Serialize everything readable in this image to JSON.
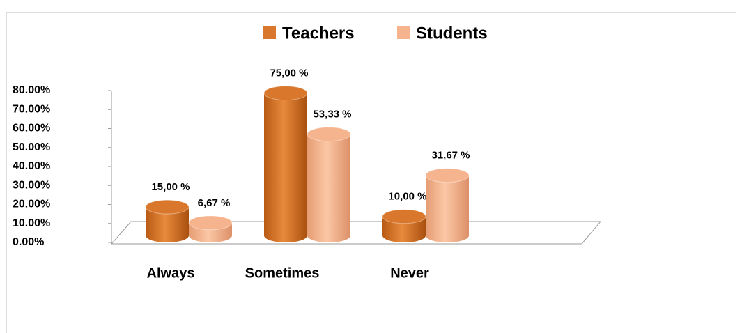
{
  "chart_data": {
    "type": "bar3d",
    "categories": [
      "Always",
      "Sometimes",
      "Never"
    ],
    "series": [
      {
        "name": "Teachers",
        "color": "#d9782c",
        "values": [
          15,
          75,
          10
        ],
        "value_labels": [
          "15,00 %",
          "75,00 %",
          "10,00 %"
        ]
      },
      {
        "name": "Students",
        "color": "#f6b48e",
        "values": [
          6.67,
          53.33,
          31.67
        ],
        "value_labels": [
          "6,67 %",
          "53,33 %",
          "31,67 %"
        ]
      }
    ],
    "ylim": [
      0,
      80
    ],
    "yticks": [
      {
        "value": 0,
        "label": "0.00%"
      },
      {
        "value": 10,
        "label": "10.00%"
      },
      {
        "value": 20,
        "label": "20.00%"
      },
      {
        "value": 30,
        "label": "30.00%"
      },
      {
        "value": 40,
        "label": "40.00%"
      },
      {
        "value": 50,
        "label": "50.00%"
      },
      {
        "value": 60,
        "label": "60.00%"
      },
      {
        "value": 70,
        "label": "70.00%"
      },
      {
        "value": 80,
        "label": "80.00%"
      }
    ],
    "legend": "top"
  }
}
